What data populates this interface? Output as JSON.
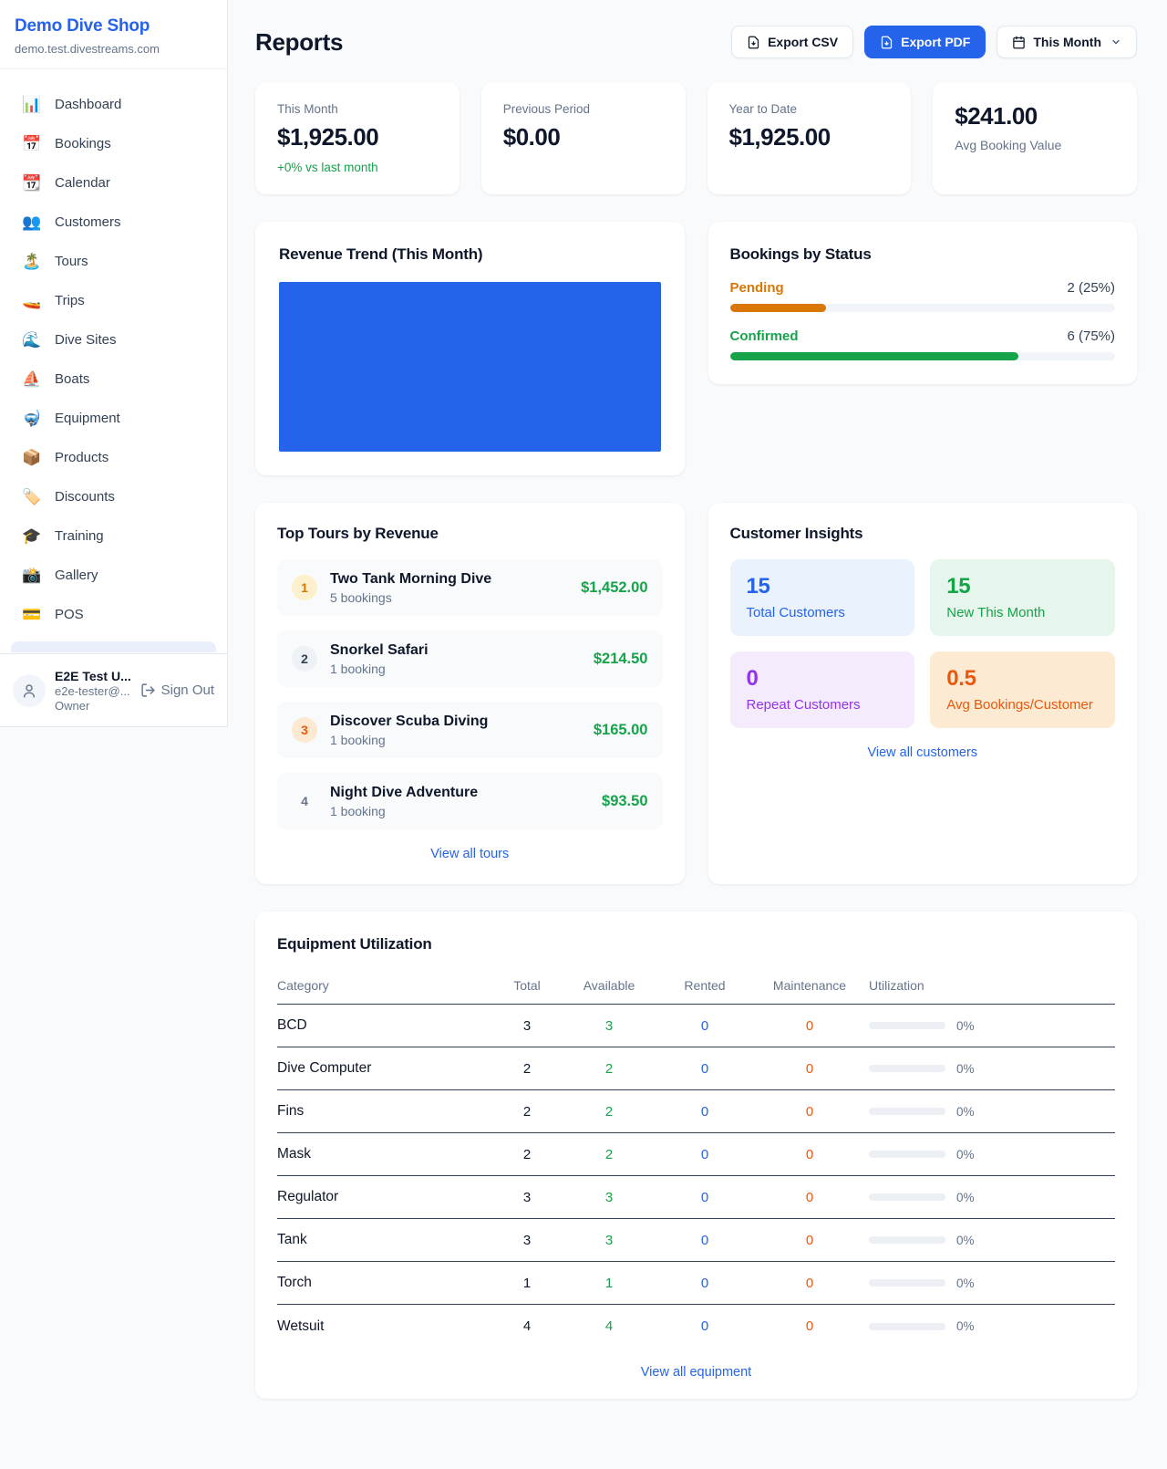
{
  "sidebar": {
    "brand": {
      "name": "Demo Dive Shop",
      "domain": "demo.test.divestreams.com"
    },
    "items": [
      {
        "icon": "📊",
        "label": "Dashboard"
      },
      {
        "icon": "📅",
        "label": "Bookings"
      },
      {
        "icon": "📆",
        "label": "Calendar"
      },
      {
        "icon": "👥",
        "label": "Customers"
      },
      {
        "icon": "🏝️",
        "label": "Tours"
      },
      {
        "icon": "🚤",
        "label": "Trips"
      },
      {
        "icon": "🌊",
        "label": "Dive Sites"
      },
      {
        "icon": "⛵",
        "label": "Boats"
      },
      {
        "icon": "🤿",
        "label": "Equipment"
      },
      {
        "icon": "📦",
        "label": "Products"
      },
      {
        "icon": "🏷️",
        "label": "Discounts"
      },
      {
        "icon": "🎓",
        "label": "Training"
      },
      {
        "icon": "📸",
        "label": "Gallery"
      },
      {
        "icon": "💳",
        "label": "POS"
      }
    ],
    "user": {
      "name": "E2E Test U...",
      "email": "e2e-tester@...",
      "role": "Owner",
      "signout_label": "Sign Out"
    }
  },
  "header": {
    "title": "Reports",
    "export_csv_label": "Export CSV",
    "export_pdf_label": "Export PDF",
    "period_label": "This Month"
  },
  "stats": {
    "0": {
      "label": "This Month",
      "value": "$1,925.00",
      "delta": "+0% vs last month"
    },
    "1": {
      "label": "Previous Period",
      "value": "$0.00"
    },
    "2": {
      "label": "Year to Date",
      "value": "$1,925.00"
    },
    "3": {
      "label": "Avg Booking Value",
      "value": "$241.00"
    }
  },
  "revenue_trend": {
    "title": "Revenue Trend (This Month)"
  },
  "chart_data": {
    "type": "bar",
    "title": "Revenue Trend (This Month)",
    "categories": [
      ""
    ],
    "values": [
      1925
    ],
    "ylim": [
      0,
      1925
    ],
    "color": "#2563eb",
    "layout": "single full-width bar filling plot area, no axes, gridlines or labels visible"
  },
  "bookings_by_status": {
    "title": "Bookings by Status",
    "rows": {
      "0": {
        "label": "Pending",
        "count": "2 (25%)",
        "pct": 25,
        "color": "#d97706"
      },
      "1": {
        "label": "Confirmed",
        "count": "6 (75%)",
        "pct": 75,
        "color": "#16a34a"
      }
    }
  },
  "top_tours": {
    "title": "Top Tours by Revenue",
    "link": "View all tours",
    "items": {
      "0": {
        "rank": "1",
        "name": "Two Tank Morning Dive",
        "sub": "5 bookings",
        "amount": "$1,452.00",
        "badge_bg": "#fdf0cd",
        "badge_color": "#d97706"
      },
      "1": {
        "rank": "2",
        "name": "Snorkel Safari",
        "sub": "1 booking",
        "amount": "$214.50",
        "badge_bg": "#eef1f5",
        "badge_color": "#334155"
      },
      "2": {
        "rank": "3",
        "name": "Discover Scuba Diving",
        "sub": "1 booking",
        "amount": "$165.00",
        "badge_bg": "#fde8d2",
        "badge_color": "#ea580c"
      },
      "3": {
        "rank": "4",
        "name": "Night Dive Adventure",
        "sub": "1 booking",
        "amount": "$93.50",
        "badge_bg": "transparent",
        "badge_color": "#64748b"
      }
    }
  },
  "customer_insights": {
    "title": "Customer Insights",
    "link": "View all customers",
    "tiles": {
      "0": {
        "value": "15",
        "label": "Total Customers",
        "bg": "#eaf2fe",
        "color": "#2563eb"
      },
      "1": {
        "value": "15",
        "label": "New This Month",
        "bg": "#e6f6ec",
        "color": "#16a34a"
      },
      "2": {
        "value": "0",
        "label": "Repeat Customers",
        "bg": "#f4ebfd",
        "color": "#9333ea"
      },
      "3": {
        "value": "0.5",
        "label": "Avg Bookings/Customer",
        "bg": "#fcead3",
        "color": "#ea580c"
      }
    }
  },
  "equipment": {
    "title": "Equipment Utilization",
    "link": "View all equipment",
    "columns": {
      "0": "Category",
      "1": "Total",
      "2": "Available",
      "3": "Rented",
      "4": "Maintenance",
      "5": "Utilization"
    },
    "rows": {
      "0": {
        "category": "BCD",
        "total": "3",
        "available": "3",
        "rented": "0",
        "maintenance": "0",
        "utilization": "0%",
        "utilization_pct": 0
      },
      "1": {
        "category": "Dive Computer",
        "total": "2",
        "available": "2",
        "rented": "0",
        "maintenance": "0",
        "utilization": "0%",
        "utilization_pct": 0
      },
      "2": {
        "category": "Fins",
        "total": "2",
        "available": "2",
        "rented": "0",
        "maintenance": "0",
        "utilization": "0%",
        "utilization_pct": 0
      },
      "3": {
        "category": "Mask",
        "total": "2",
        "available": "2",
        "rented": "0",
        "maintenance": "0",
        "utilization": "0%",
        "utilization_pct": 0
      },
      "4": {
        "category": "Regulator",
        "total": "3",
        "available": "3",
        "rented": "0",
        "maintenance": "0",
        "utilization": "0%",
        "utilization_pct": 0
      },
      "5": {
        "category": "Tank",
        "total": "3",
        "available": "3",
        "rented": "0",
        "maintenance": "0",
        "utilization": "0%",
        "utilization_pct": 0
      },
      "6": {
        "category": "Torch",
        "total": "1",
        "available": "1",
        "rented": "0",
        "maintenance": "0",
        "utilization": "0%",
        "utilization_pct": 0
      },
      "7": {
        "category": "Wetsuit",
        "total": "4",
        "available": "4",
        "rented": "0",
        "maintenance": "0",
        "utilization": "0%",
        "utilization_pct": 0
      }
    }
  }
}
